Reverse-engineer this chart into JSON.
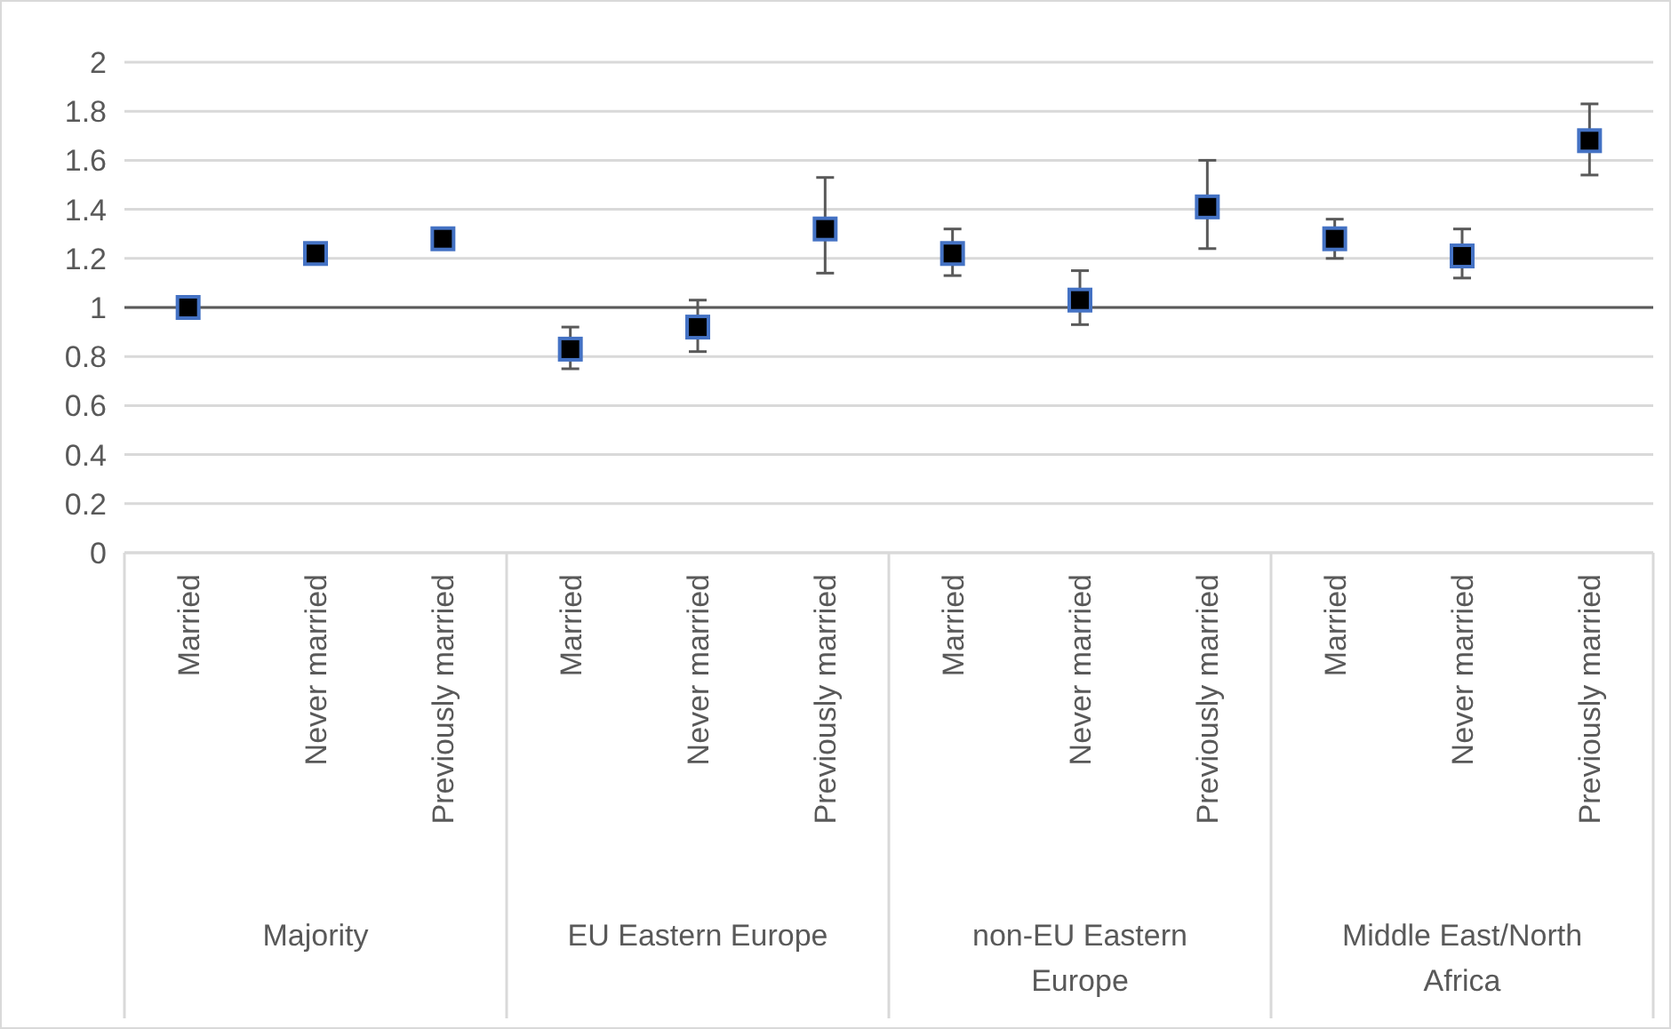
{
  "chart_data": {
    "type": "scatter",
    "categories": [
      "Married",
      "Never married",
      "Previously married",
      "Married",
      "Never married",
      "Previously married",
      "Married",
      "Never married",
      "Previously married",
      "Married",
      "Never married",
      "Previously married"
    ],
    "series": [
      {
        "color": "#000000",
        "values": [
          1.0,
          1.22,
          1.28,
          0.83,
          0.92,
          1.32,
          1.22,
          1.03,
          1.41,
          1.28,
          1.21,
          1.68
        ],
        "errors": [
          null,
          null,
          null,
          [
            0.75,
            0.92
          ],
          [
            0.82,
            1.03
          ],
          [
            1.14,
            1.53
          ],
          [
            1.13,
            1.32
          ],
          [
            0.93,
            1.15
          ],
          [
            1.24,
            1.6
          ],
          [
            1.2,
            1.36
          ],
          [
            1.12,
            1.32
          ],
          [
            1.54,
            1.83
          ]
        ]
      }
    ],
    "annotations": [
      "Majority",
      "EU Eastern Europe",
      "non-EU Eastern Europe",
      "Middle East/North Africa"
    ],
    "ylim": [
      0,
      2
    ],
    "yticks": [
      0,
      0.2,
      0.4,
      0.6,
      0.8,
      1,
      1.2,
      1.4,
      1.6,
      1.8,
      2
    ],
    "grid": "y",
    "marker": "square",
    "ref_lines": [
      {
        "axis": "y",
        "value": 1,
        "color": "#595959"
      }
    ]
  }
}
